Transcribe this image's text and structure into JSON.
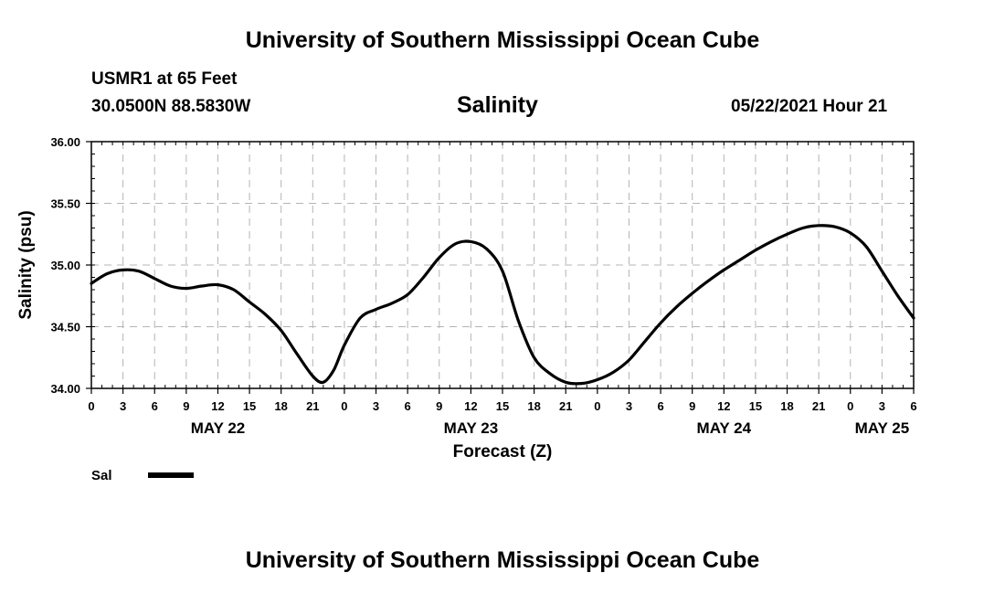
{
  "header": {
    "title": "University of Southern Mississippi Ocean Cube",
    "station": "USMR1 at 65 Feet",
    "coords": "30.0500N  88.5830W",
    "variable": "Salinity",
    "datetime": "05/22/2021 Hour 21"
  },
  "footer": {
    "title": "University of Southern Mississippi Ocean Cube"
  },
  "chart_data": {
    "type": "line",
    "title": "Salinity",
    "xlabel": "Forecast (Z)",
    "ylabel": "Salinity (psu)",
    "ylim": [
      34.0,
      36.0
    ],
    "xlim": [
      0,
      78
    ],
    "y_ticks": [
      "34.00",
      "34.50",
      "35.00",
      "35.50",
      "36.00"
    ],
    "x_ticks": [
      "0",
      "3",
      "6",
      "9",
      "12",
      "15",
      "18",
      "21",
      "0",
      "3",
      "6",
      "9",
      "12",
      "15",
      "18",
      "21",
      "0",
      "3",
      "6",
      "9",
      "12",
      "15",
      "18",
      "21",
      "0",
      "3",
      "6"
    ],
    "x_tick_step_hours": 3,
    "day_labels": [
      {
        "label": "MAY 22",
        "hour": 12
      },
      {
        "label": "MAY 23",
        "hour": 36
      },
      {
        "label": "MAY 24",
        "hour": 60
      },
      {
        "label": "MAY 25",
        "hour": 75
      }
    ],
    "grid": true,
    "legend": {
      "label": "Sal",
      "color": "#000000",
      "position": "bottom-left"
    },
    "series": [
      {
        "name": "Sal",
        "x": [
          0,
          1.5,
          3,
          4.5,
          6,
          7.5,
          9,
          10.5,
          12,
          13.5,
          15,
          16.5,
          18,
          19.5,
          21,
          22,
          23,
          24,
          25.5,
          27,
          28.5,
          30,
          31.5,
          33,
          34.5,
          36,
          37.5,
          39,
          40.5,
          42,
          43.5,
          45,
          46.5,
          48,
          49.5,
          51,
          52.5,
          54,
          55.5,
          57,
          58.5,
          60,
          61.5,
          63,
          64.5,
          66,
          67.5,
          69,
          70.5,
          72,
          73.5,
          75,
          76.5,
          78
        ],
        "y": [
          34.85,
          34.93,
          34.96,
          34.95,
          34.89,
          34.83,
          34.81,
          34.83,
          34.84,
          34.8,
          34.7,
          34.6,
          34.47,
          34.28,
          34.1,
          34.05,
          34.15,
          34.35,
          34.57,
          34.64,
          34.69,
          34.76,
          34.9,
          35.06,
          35.17,
          35.19,
          35.13,
          34.95,
          34.55,
          34.25,
          34.12,
          34.05,
          34.04,
          34.07,
          34.13,
          34.23,
          34.38,
          34.53,
          34.66,
          34.77,
          34.87,
          34.96,
          35.04,
          35.12,
          35.19,
          35.25,
          35.3,
          35.32,
          35.31,
          35.26,
          35.15,
          34.95,
          34.75,
          34.57
        ]
      }
    ]
  }
}
